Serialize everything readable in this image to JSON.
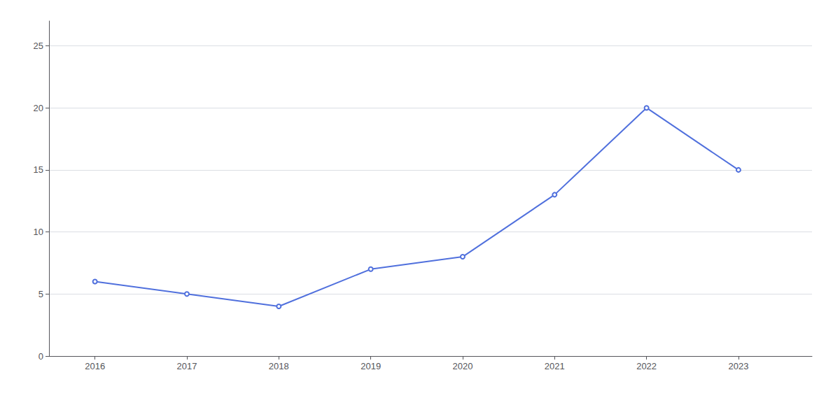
{
  "chart_data": {
    "type": "line",
    "x": [
      2016,
      2017,
      2018,
      2019,
      2020,
      2021,
      2022,
      2023
    ],
    "values": [
      6,
      5,
      4,
      7,
      8,
      13,
      20,
      15
    ],
    "xlim": [
      2015.5,
      2023.8
    ],
    "xticks": [
      2016,
      2017,
      2018,
      2019,
      2020,
      2021,
      2022,
      2023
    ],
    "ylim": [
      0,
      27
    ],
    "yticks": [
      0,
      5,
      10,
      15,
      20,
      25
    ],
    "grid": "y"
  }
}
